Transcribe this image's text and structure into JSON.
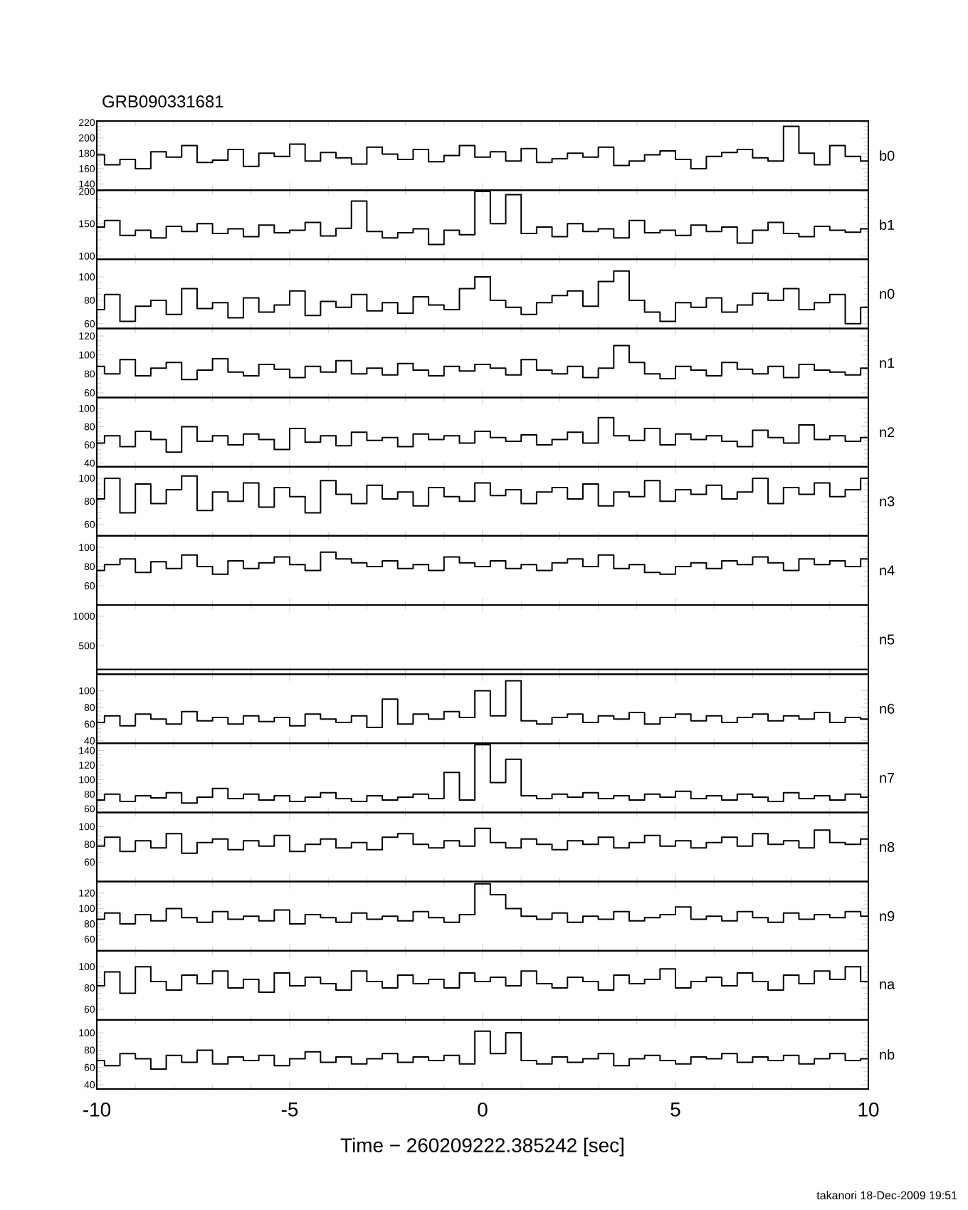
{
  "chart_data": [
    {
      "type": "step",
      "title": "GRB090331681",
      "ylabel": "b0",
      "color": "#000000",
      "xlim": [
        -10,
        10
      ],
      "xticks": [
        -10,
        -5,
        0,
        5,
        10
      ],
      "ylim": [
        132,
        222
      ],
      "yticks": [
        140,
        160,
        180,
        200,
        220
      ],
      "tick_labels": "y",
      "x": [
        -10,
        -9.6,
        -9.2,
        -8.8,
        -8.4,
        -8,
        -7.6,
        -7.2,
        -6.8,
        -6.4,
        -6,
        -5.6,
        -5.2,
        -4.8,
        -4.4,
        -4,
        -3.6,
        -3.2,
        -2.8,
        -2.4,
        -2,
        -1.6,
        -1.2,
        -0.8,
        -0.4,
        0,
        0.4,
        0.8,
        1.2,
        1.6,
        2,
        2.4,
        2.8,
        3.2,
        3.6,
        4,
        4.4,
        4.8,
        5.2,
        5.6,
        6,
        6.4,
        6.8,
        7.2,
        7.6,
        8,
        8.4,
        8.8,
        9.2,
        9.6,
        10
      ],
      "values": [
        178,
        165,
        172,
        160,
        182,
        175,
        190,
        168,
        171,
        185,
        163,
        180,
        176,
        192,
        170,
        181,
        174,
        166,
        188,
        179,
        172,
        185,
        169,
        177,
        190,
        175,
        182,
        170,
        186,
        168,
        173,
        180,
        175,
        188,
        164,
        170,
        178,
        183,
        172,
        160,
        176,
        181,
        185,
        174,
        170,
        215,
        180,
        165,
        190,
        176,
        170
      ]
    },
    {
      "type": "step",
      "ylabel": "b1",
      "color": "#000000",
      "xlim": [
        -10,
        10
      ],
      "xticks": [
        -10,
        -5,
        0,
        5,
        10
      ],
      "ylim": [
        95,
        202
      ],
      "yticks": [
        100,
        150,
        200
      ],
      "tick_labels": "y",
      "x": [
        -10,
        -9.6,
        -9.2,
        -8.8,
        -8.4,
        -8,
        -7.6,
        -7.2,
        -6.8,
        -6.4,
        -6,
        -5.6,
        -5.2,
        -4.8,
        -4.4,
        -4,
        -3.6,
        -3.2,
        -2.8,
        -2.4,
        -2,
        -1.6,
        -1.2,
        -0.8,
        -0.4,
        0,
        0.4,
        0.8,
        1.2,
        1.6,
        2,
        2.4,
        2.8,
        3.2,
        3.6,
        4,
        4.4,
        4.8,
        5.2,
        5.6,
        6,
        6.4,
        6.8,
        7.2,
        7.6,
        8,
        8.4,
        8.8,
        9.2,
        9.6,
        10
      ],
      "values": [
        145,
        155,
        132,
        140,
        128,
        146,
        138,
        150,
        135,
        142,
        130,
        148,
        136,
        140,
        152,
        131,
        143,
        185,
        138,
        128,
        136,
        142,
        118,
        140,
        133,
        200,
        150,
        195,
        135,
        145,
        130,
        150,
        138,
        142,
        128,
        155,
        136,
        140,
        132,
        148,
        138,
        145,
        120,
        140,
        152,
        135,
        130,
        146,
        140,
        137,
        142
      ]
    },
    {
      "type": "step",
      "ylabel": "n0",
      "color": "#000000",
      "xlim": [
        -10,
        10
      ],
      "xticks": [
        -10,
        -5,
        0,
        5,
        10
      ],
      "ylim": [
        56,
        115
      ],
      "yticks": [
        60,
        80,
        100
      ],
      "tick_labels": "y",
      "x": [
        -10,
        -9.6,
        -9.2,
        -8.8,
        -8.4,
        -8,
        -7.6,
        -7.2,
        -6.8,
        -6.4,
        -6,
        -5.6,
        -5.2,
        -4.8,
        -4.4,
        -4,
        -3.6,
        -3.2,
        -2.8,
        -2.4,
        -2,
        -1.6,
        -1.2,
        -0.8,
        -0.4,
        0,
        0.4,
        0.8,
        1.2,
        1.6,
        2,
        2.4,
        2.8,
        3.2,
        3.6,
        4,
        4.4,
        4.8,
        5.2,
        5.6,
        6,
        6.4,
        6.8,
        7.2,
        7.6,
        8,
        8.4,
        8.8,
        9.2,
        9.6,
        10
      ],
      "values": [
        72,
        85,
        62,
        75,
        80,
        68,
        90,
        73,
        78,
        65,
        82,
        70,
        76,
        88,
        67,
        79,
        74,
        85,
        71,
        78,
        69,
        83,
        76,
        72,
        90,
        100,
        80,
        74,
        68,
        78,
        84,
        88,
        75,
        96,
        105,
        80,
        70,
        62,
        78,
        74,
        82,
        70,
        76,
        86,
        80,
        90,
        72,
        78,
        85,
        60,
        74
      ]
    },
    {
      "type": "step",
      "ylabel": "n1",
      "color": "#000000",
      "xlim": [
        -10,
        10
      ],
      "xticks": [
        -10,
        -5,
        0,
        5,
        10
      ],
      "ylim": [
        55,
        128
      ],
      "yticks": [
        60,
        80,
        100,
        120
      ],
      "tick_labels": "y",
      "x": [
        -10,
        -9.6,
        -9.2,
        -8.8,
        -8.4,
        -8,
        -7.6,
        -7.2,
        -6.8,
        -6.4,
        -6,
        -5.6,
        -5.2,
        -4.8,
        -4.4,
        -4,
        -3.6,
        -3.2,
        -2.8,
        -2.4,
        -2,
        -1.6,
        -1.2,
        -0.8,
        -0.4,
        0,
        0.4,
        0.8,
        1.2,
        1.6,
        2,
        2.4,
        2.8,
        3.2,
        3.6,
        4,
        4.4,
        4.8,
        5.2,
        5.6,
        6,
        6.4,
        6.8,
        7.2,
        7.6,
        8,
        8.4,
        8.8,
        9.2,
        9.6,
        10
      ],
      "values": [
        88,
        80,
        95,
        78,
        86,
        92,
        74,
        84,
        96,
        82,
        78,
        90,
        85,
        76,
        88,
        82,
        94,
        80,
        86,
        79,
        91,
        84,
        78,
        88,
        83,
        90,
        86,
        79,
        95,
        84,
        80,
        88,
        76,
        86,
        110,
        92,
        80,
        75,
        88,
        84,
        78,
        92,
        85,
        80,
        88,
        76,
        90,
        84,
        82,
        79,
        86
      ]
    },
    {
      "type": "step",
      "ylabel": "n2",
      "color": "#000000",
      "xlim": [
        -10,
        10
      ],
      "xticks": [
        -10,
        -5,
        0,
        5,
        10
      ],
      "ylim": [
        36,
        112
      ],
      "yticks": [
        40,
        60,
        80,
        100
      ],
      "tick_labels": "y",
      "x": [
        -10,
        -9.6,
        -9.2,
        -8.8,
        -8.4,
        -8,
        -7.6,
        -7.2,
        -6.8,
        -6.4,
        -6,
        -5.6,
        -5.2,
        -4.8,
        -4.4,
        -4,
        -3.6,
        -3.2,
        -2.8,
        -2.4,
        -2,
        -1.6,
        -1.2,
        -0.8,
        -0.4,
        0,
        0.4,
        0.8,
        1.2,
        1.6,
        2,
        2.4,
        2.8,
        3.2,
        3.6,
        4,
        4.4,
        4.8,
        5.2,
        5.6,
        6,
        6.4,
        6.8,
        7.2,
        7.6,
        8,
        8.4,
        8.8,
        9.2,
        9.6,
        10
      ],
      "values": [
        62,
        70,
        58,
        75,
        66,
        52,
        80,
        64,
        70,
        60,
        72,
        66,
        55,
        78,
        63,
        70,
        59,
        74,
        65,
        68,
        58,
        72,
        66,
        70,
        62,
        75,
        68,
        64,
        71,
        60,
        66,
        74,
        62,
        90,
        70,
        65,
        78,
        60,
        72,
        66,
        70,
        64,
        58,
        76,
        68,
        62,
        82,
        66,
        70,
        64,
        68
      ]
    },
    {
      "type": "step",
      "ylabel": "n3",
      "color": "#000000",
      "xlim": [
        -10,
        10
      ],
      "xticks": [
        -10,
        -5,
        0,
        5,
        10
      ],
      "ylim": [
        50,
        110
      ],
      "yticks": [
        60,
        80,
        100
      ],
      "tick_labels": "y",
      "x": [
        -10,
        -9.6,
        -9.2,
        -8.8,
        -8.4,
        -8,
        -7.6,
        -7.2,
        -6.8,
        -6.4,
        -6,
        -5.6,
        -5.2,
        -4.8,
        -4.4,
        -4,
        -3.6,
        -3.2,
        -2.8,
        -2.4,
        -2,
        -1.6,
        -1.2,
        -0.8,
        -0.4,
        0,
        0.4,
        0.8,
        1.2,
        1.6,
        2,
        2.4,
        2.8,
        3.2,
        3.6,
        4,
        4.4,
        4.8,
        5.2,
        5.6,
        6,
        6.4,
        6.8,
        7.2,
        7.6,
        8,
        8.4,
        8.8,
        9.2,
        9.6,
        10
      ],
      "values": [
        82,
        100,
        70,
        95,
        78,
        90,
        102,
        72,
        88,
        80,
        96,
        75,
        92,
        84,
        70,
        98,
        86,
        78,
        94,
        82,
        88,
        76,
        92,
        84,
        80,
        96,
        85,
        90,
        78,
        88,
        92,
        82,
        95,
        76,
        88,
        84,
        98,
        80,
        90,
        86,
        94,
        82,
        88,
        100,
        78,
        92,
        86,
        96,
        84,
        90,
        100
      ]
    },
    {
      "type": "step",
      "ylabel": "n4",
      "color": "#000000",
      "xlim": [
        -10,
        10
      ],
      "xticks": [
        -10,
        -5,
        0,
        5,
        10
      ],
      "ylim": [
        40,
        112
      ],
      "yticks": [
        60,
        80,
        100
      ],
      "tick_labels": "y",
      "x": [
        -10,
        -9.6,
        -9.2,
        -8.8,
        -8.4,
        -8,
        -7.6,
        -7.2,
        -6.8,
        -6.4,
        -6,
        -5.6,
        -5.2,
        -4.8,
        -4.4,
        -4,
        -3.6,
        -3.2,
        -2.8,
        -2.4,
        -2,
        -1.6,
        -1.2,
        -0.8,
        -0.4,
        0,
        0.4,
        0.8,
        1.2,
        1.6,
        2,
        2.4,
        2.8,
        3.2,
        3.6,
        4,
        4.4,
        4.8,
        5.2,
        5.6,
        6,
        6.4,
        6.8,
        7.2,
        7.6,
        8,
        8.4,
        8.8,
        9.2,
        9.6,
        10
      ],
      "values": [
        76,
        82,
        88,
        74,
        85,
        78,
        92,
        80,
        72,
        86,
        78,
        84,
        90,
        82,
        76,
        95,
        88,
        84,
        80,
        86,
        78,
        82,
        76,
        90,
        84,
        80,
        86,
        78,
        82,
        76,
        84,
        88,
        80,
        92,
        78,
        82,
        74,
        72,
        80,
        84,
        78,
        86,
        82,
        90,
        84,
        76,
        88,
        82,
        86,
        80,
        88
      ]
    },
    {
      "type": "step",
      "ylabel": "n5",
      "color": "#000000",
      "xlim": [
        -10,
        10
      ],
      "xticks": [
        -10,
        -5,
        0,
        5,
        10
      ],
      "ylim": [
        20,
        1190
      ],
      "yticks": [
        500,
        1000
      ],
      "tick_labels": "y",
      "x": [
        -10,
        -9.6,
        -9.2,
        -8.8,
        -8.4,
        -8,
        -7.6,
        -7.2,
        -6.8,
        -6.4,
        -6,
        -5.6,
        -5.2,
        -4.8,
        -4.4,
        -4,
        -3.6,
        -3.2,
        -2.8,
        -2.4,
        -2,
        -1.6,
        -1.2,
        -0.8,
        -0.4,
        0,
        0.4,
        0.8,
        1.2,
        1.6,
        2,
        2.4,
        2.8,
        3.2,
        3.6,
        4,
        4.4,
        4.8,
        5.2,
        5.6,
        6,
        6.4,
        6.8,
        7.2,
        7.6,
        8,
        8.4,
        8.8,
        9.2,
        9.6,
        10
      ],
      "values": [
        100,
        100,
        100,
        100,
        100,
        100,
        100,
        100,
        100,
        100,
        100,
        100,
        100,
        100,
        100,
        100,
        100,
        100,
        100,
        100,
        100,
        100,
        100,
        100,
        100,
        100,
        100,
        100,
        100,
        100,
        100,
        100,
        100,
        100,
        100,
        100,
        100,
        100,
        100,
        100,
        100,
        100,
        100,
        100,
        100,
        100,
        100,
        100,
        100,
        100,
        100
      ]
    },
    {
      "type": "step",
      "ylabel": "n6",
      "color": "#000000",
      "xlim": [
        -10,
        10
      ],
      "xticks": [
        -10,
        -5,
        0,
        5,
        10
      ],
      "ylim": [
        37,
        120
      ],
      "yticks": [
        40,
        60,
        80,
        100
      ],
      "tick_labels": "y",
      "x": [
        -10,
        -9.6,
        -9.2,
        -8.8,
        -8.4,
        -8,
        -7.6,
        -7.2,
        -6.8,
        -6.4,
        -6,
        -5.6,
        -5.2,
        -4.8,
        -4.4,
        -4,
        -3.6,
        -3.2,
        -2.8,
        -2.4,
        -2,
        -1.6,
        -1.2,
        -0.8,
        -0.4,
        0,
        0.4,
        0.8,
        1.2,
        1.6,
        2,
        2.4,
        2.8,
        3.2,
        3.6,
        4,
        4.4,
        4.8,
        5.2,
        5.6,
        6,
        6.4,
        6.8,
        7.2,
        7.6,
        8,
        8.4,
        8.8,
        9.2,
        9.6,
        10
      ],
      "values": [
        62,
        70,
        58,
        72,
        66,
        60,
        75,
        64,
        68,
        60,
        70,
        63,
        68,
        58,
        72,
        66,
        62,
        70,
        56,
        90,
        60,
        72,
        66,
        75,
        68,
        100,
        70,
        112,
        64,
        60,
        68,
        72,
        62,
        70,
        66,
        74,
        60,
        68,
        72,
        64,
        70,
        62,
        68,
        72,
        64,
        70,
        66,
        74,
        62,
        68,
        66
      ]
    },
    {
      "type": "step",
      "ylabel": "n7",
      "color": "#000000",
      "xlim": [
        -10,
        10
      ],
      "xticks": [
        -10,
        -5,
        0,
        5,
        10
      ],
      "ylim": [
        55,
        150
      ],
      "yticks": [
        60,
        80,
        100,
        120,
        140
      ],
      "tick_labels": "y",
      "x": [
        -10,
        -9.6,
        -9.2,
        -8.8,
        -8.4,
        -8,
        -7.6,
        -7.2,
        -6.8,
        -6.4,
        -6,
        -5.6,
        -5.2,
        -4.8,
        -4.4,
        -4,
        -3.6,
        -3.2,
        -2.8,
        -2.4,
        -2,
        -1.6,
        -1.2,
        -0.8,
        -0.4,
        0,
        0.4,
        0.8,
        1.2,
        1.6,
        2,
        2.4,
        2.8,
        3.2,
        3.6,
        4,
        4.4,
        4.8,
        5.2,
        5.6,
        6,
        6.4,
        6.8,
        7.2,
        7.6,
        8,
        8.4,
        8.8,
        9.2,
        9.6,
        10
      ],
      "values": [
        72,
        80,
        70,
        78,
        75,
        82,
        68,
        76,
        88,
        74,
        80,
        72,
        78,
        70,
        76,
        82,
        74,
        70,
        78,
        72,
        76,
        80,
        74,
        110,
        72,
        148,
        96,
        128,
        78,
        74,
        80,
        76,
        82,
        74,
        78,
        72,
        80,
        76,
        84,
        74,
        78,
        72,
        80,
        76,
        70,
        82,
        74,
        78,
        72,
        80,
        76
      ]
    },
    {
      "type": "step",
      "ylabel": "n8",
      "color": "#000000",
      "xlim": [
        -10,
        10
      ],
      "xticks": [
        -10,
        -5,
        0,
        5,
        10
      ],
      "ylim": [
        38,
        116
      ],
      "yticks": [
        60,
        80,
        100
      ],
      "tick_labels": "y",
      "x": [
        -10,
        -9.6,
        -9.2,
        -8.8,
        -8.4,
        -8,
        -7.6,
        -7.2,
        -6.8,
        -6.4,
        -6,
        -5.6,
        -5.2,
        -4.8,
        -4.4,
        -4,
        -3.6,
        -3.2,
        -2.8,
        -2.4,
        -2,
        -1.6,
        -1.2,
        -0.8,
        -0.4,
        0,
        0.4,
        0.8,
        1.2,
        1.6,
        2,
        2.4,
        2.8,
        3.2,
        3.6,
        4,
        4.4,
        4.8,
        5.2,
        5.6,
        6,
        6.4,
        6.8,
        7.2,
        7.6,
        8,
        8.4,
        8.8,
        9.2,
        9.6,
        10
      ],
      "values": [
        78,
        88,
        72,
        84,
        76,
        92,
        70,
        82,
        86,
        74,
        84,
        78,
        90,
        72,
        80,
        86,
        76,
        82,
        74,
        88,
        92,
        80,
        76,
        84,
        78,
        98,
        82,
        76,
        86,
        80,
        74,
        84,
        80,
        88,
        76,
        82,
        90,
        78,
        84,
        76,
        82,
        88,
        78,
        92,
        80,
        84,
        76,
        96,
        82,
        80,
        86
      ]
    },
    {
      "type": "step",
      "ylabel": "n9",
      "color": "#000000",
      "xlim": [
        -10,
        10
      ],
      "xticks": [
        -10,
        -5,
        0,
        5,
        10
      ],
      "ylim": [
        45,
        135
      ],
      "yticks": [
        60,
        80,
        100,
        120
      ],
      "tick_labels": "y",
      "x": [
        -10,
        -9.6,
        -9.2,
        -8.8,
        -8.4,
        -8,
        -7.6,
        -7.2,
        -6.8,
        -6.4,
        -6,
        -5.6,
        -5.2,
        -4.8,
        -4.4,
        -4,
        -3.6,
        -3.2,
        -2.8,
        -2.4,
        -2,
        -1.6,
        -1.2,
        -0.8,
        -0.4,
        0,
        0.4,
        0.8,
        1.2,
        1.6,
        2,
        2.4,
        2.8,
        3.2,
        3.6,
        4,
        4.4,
        4.8,
        5.2,
        5.6,
        6,
        6.4,
        6.8,
        7.2,
        7.6,
        8,
        8.4,
        8.8,
        9.2,
        9.6,
        10
      ],
      "values": [
        86,
        94,
        80,
        92,
        84,
        100,
        88,
        82,
        96,
        86,
        90,
        84,
        98,
        80,
        92,
        88,
        82,
        94,
        86,
        90,
        84,
        96,
        88,
        82,
        92,
        132,
        118,
        100,
        90,
        86,
        94,
        82,
        90,
        86,
        96,
        84,
        88,
        92,
        102,
        86,
        90,
        84,
        96,
        88,
        82,
        94,
        86,
        92,
        88,
        96,
        90
      ]
    },
    {
      "type": "step",
      "ylabel": "na",
      "color": "#000000",
      "xlim": [
        -10,
        10
      ],
      "xticks": [
        -10,
        -5,
        0,
        5,
        10
      ],
      "ylim": [
        50,
        115
      ],
      "yticks": [
        60,
        80,
        100
      ],
      "tick_labels": "y",
      "x": [
        -10,
        -9.6,
        -9.2,
        -8.8,
        -8.4,
        -8,
        -7.6,
        -7.2,
        -6.8,
        -6.4,
        -6,
        -5.6,
        -5.2,
        -4.8,
        -4.4,
        -4,
        -3.6,
        -3.2,
        -2.8,
        -2.4,
        -2,
        -1.6,
        -1.2,
        -0.8,
        -0.4,
        0,
        0.4,
        0.8,
        1.2,
        1.6,
        2,
        2.4,
        2.8,
        3.2,
        3.6,
        4,
        4.4,
        4.8,
        5.2,
        5.6,
        6,
        6.4,
        6.8,
        7.2,
        7.6,
        8,
        8.4,
        8.8,
        9.2,
        9.6,
        10
      ],
      "values": [
        82,
        95,
        75,
        100,
        86,
        78,
        92,
        84,
        96,
        80,
        88,
        76,
        94,
        82,
        90,
        84,
        78,
        96,
        86,
        80,
        92,
        84,
        88,
        80,
        94,
        86,
        90,
        82,
        96,
        84,
        80,
        90,
        86,
        78,
        92,
        84,
        88,
        98,
        80,
        86,
        90,
        82,
        94,
        86,
        78,
        92,
        84,
        96,
        88,
        100,
        86
      ]
    },
    {
      "type": "step",
      "ylabel": "nb",
      "xlabel": "Time − 260209222.385242 [sec]",
      "annotations": [
        "takanori 18-Dec-2009 19:51"
      ],
      "color": "#000000",
      "xlim": [
        -10,
        10
      ],
      "xticks": [
        -10,
        -5,
        0,
        5,
        10
      ],
      "ylim": [
        35,
        115
      ],
      "yticks": [
        40,
        60,
        80,
        100
      ],
      "x": [
        -10,
        -9.6,
        -9.2,
        -8.8,
        -8.4,
        -8,
        -7.6,
        -7.2,
        -6.8,
        -6.4,
        -6,
        -5.6,
        -5.2,
        -4.8,
        -4.4,
        -4,
        -3.6,
        -3.2,
        -2.8,
        -2.4,
        -2,
        -1.6,
        -1.2,
        -0.8,
        -0.4,
        0,
        0.4,
        0.8,
        1.2,
        1.6,
        2,
        2.4,
        2.8,
        3.2,
        3.6,
        4,
        4.4,
        4.8,
        5.2,
        5.6,
        6,
        6.4,
        6.8,
        7.2,
        7.6,
        8,
        8.4,
        8.8,
        9.2,
        9.6,
        10
      ],
      "values": [
        68,
        62,
        76,
        70,
        58,
        74,
        66,
        80,
        64,
        72,
        68,
        74,
        62,
        70,
        78,
        66,
        72,
        64,
        70,
        76,
        66,
        72,
        68,
        74,
        64,
        102,
        76,
        100,
        68,
        64,
        72,
        66,
        70,
        76,
        62,
        70,
        74,
        68,
        64,
        72,
        70,
        76,
        66,
        72,
        68,
        74,
        64,
        70,
        76,
        68,
        70
      ]
    }
  ]
}
